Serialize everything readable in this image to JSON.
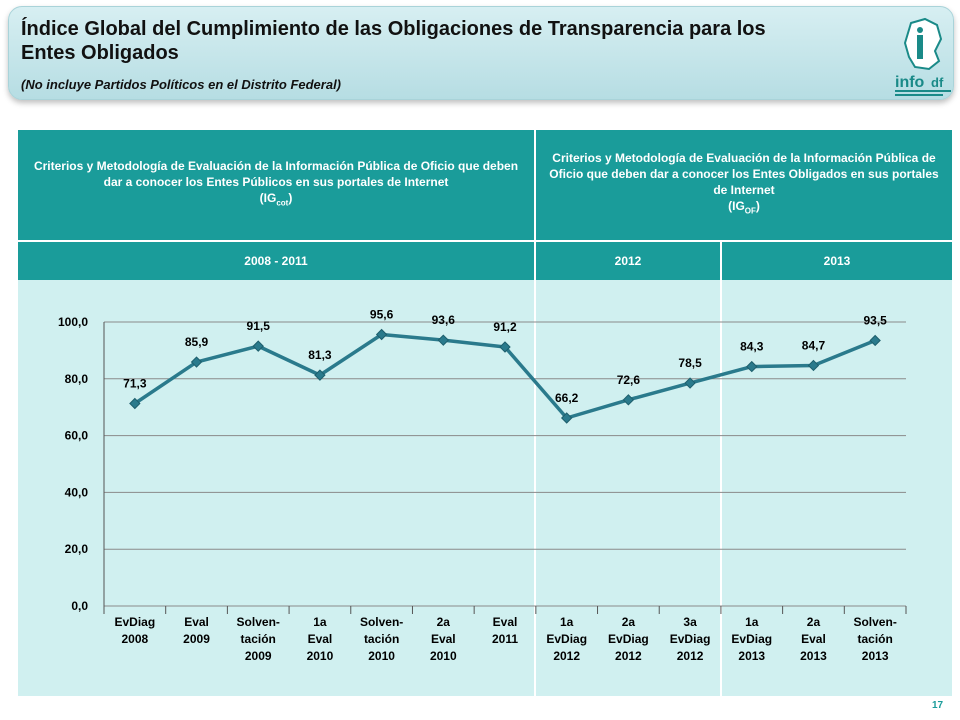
{
  "header": {
    "title": "Índice Global del Cumplimiento de las Obligaciones de Transparencia para los Entes Obligados",
    "subtitle": "(No incluye Partidos Políticos en el Distrito Federal)",
    "logo_text": "info"
  },
  "table_header": {
    "left": "Criterios y Metodología de Evaluación de la Información Pública de Oficio que deben dar a conocer los Entes Públicos en sus portales de Internet",
    "left_index": "IG",
    "left_index_sub": "cot",
    "right": "Criterios y Metodología de Evaluación de la Información Pública de Oficio que deben dar a conocer los Entes Obligados en sus portales de Internet",
    "right_index": "IG",
    "right_index_sub": "OF"
  },
  "periods": [
    "2008 - 2011",
    "2012",
    "2013"
  ],
  "page_number": "17",
  "colors": {
    "accent": "#1a9c9a",
    "line": "#2a7a8c",
    "plot_bg": "#d0f0f0"
  },
  "chart_data": {
    "type": "line",
    "categories": [
      [
        "EvDiag",
        "2008"
      ],
      [
        "Eval",
        "2009"
      ],
      [
        "Solven-",
        "tación",
        "2009"
      ],
      [
        "1a",
        "Eval",
        "2010"
      ],
      [
        "Solven-",
        "tación",
        "2010"
      ],
      [
        "2a",
        "Eval",
        "2010"
      ],
      [
        "Eval",
        "2011"
      ],
      [
        "1a",
        "EvDiag",
        "2012"
      ],
      [
        "2a",
        "EvDiag",
        "2012"
      ],
      [
        "3a",
        "EvDiag",
        "2012"
      ],
      [
        "1a",
        "EvDiag",
        "2013"
      ],
      [
        "2a",
        "Eval",
        "2013"
      ],
      [
        "Solven-",
        "tación",
        "2013"
      ]
    ],
    "values": [
      71.3,
      85.9,
      91.5,
      81.3,
      95.6,
      93.6,
      91.2,
      66.2,
      72.6,
      78.5,
      84.3,
      84.7,
      93.5
    ],
    "value_labels": [
      "71,3",
      "85,9",
      "91,5",
      "81,3",
      "95,6",
      "93,6",
      "91,2",
      "66,2",
      "72,6",
      "78,5",
      "84,3",
      "84,7",
      "93,5"
    ],
    "yticks": [
      "0,0",
      "20,0",
      "40,0",
      "60,0",
      "80,0",
      "100,0"
    ],
    "ylim": [
      0,
      100
    ],
    "grid": true,
    "legend": "none"
  }
}
